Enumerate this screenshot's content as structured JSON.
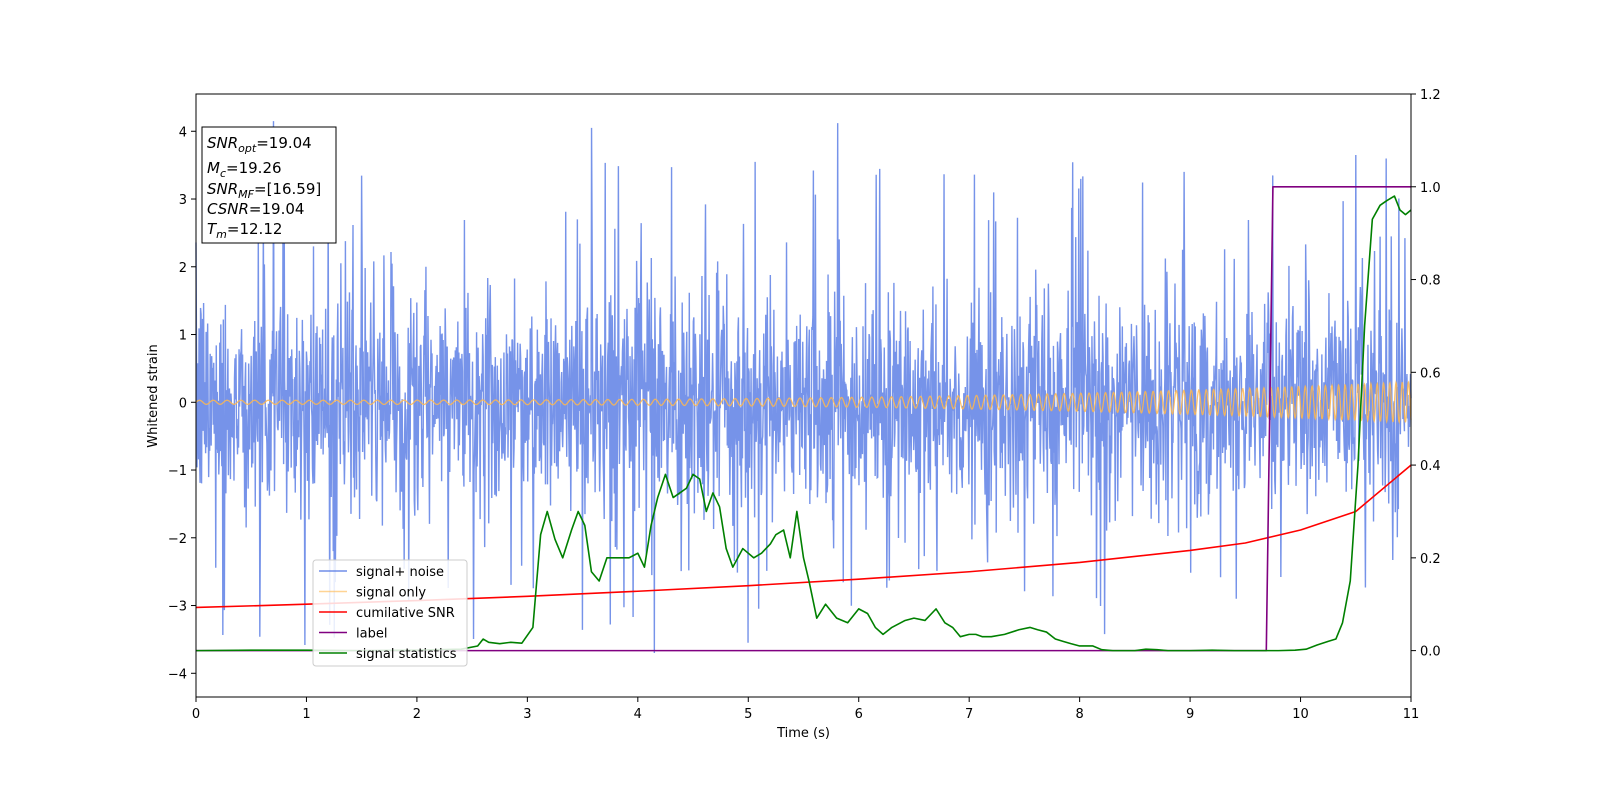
{
  "chart_data": {
    "type": "line",
    "xlabel": "Time (s)",
    "ylabel": "Whitened strain",
    "xlim": [
      0,
      11
    ],
    "ylim_left": [
      -4.35,
      4.55
    ],
    "ylim_right": [
      -0.1,
      1.2
    ],
    "x_ticks": [
      "0",
      "1",
      "2",
      "3",
      "4",
      "5",
      "6",
      "7",
      "8",
      "9",
      "10",
      "11"
    ],
    "y_ticks_left": [
      "−4",
      "−3",
      "−2",
      "−1",
      "0",
      "1",
      "2",
      "3",
      "4"
    ],
    "y_ticks_right": [
      "0.0",
      "0.2",
      "0.4",
      "0.6",
      "0.8",
      "1.0",
      "1.2"
    ],
    "legend_position": "lower-left",
    "grid": false,
    "annotation": {
      "lines": [
        {
          "base": "SNR",
          "sub": "opt",
          "value": "=19.04"
        },
        {
          "base": "M",
          "sub": "c",
          "value": "=19.26"
        },
        {
          "base": "SNR",
          "sub": "MF",
          "value": "=[16.59]"
        },
        {
          "base": "CSNR",
          "sub": "",
          "value": "=19.04"
        },
        {
          "base": "T",
          "sub": "m",
          "value": "=12.12"
        }
      ]
    },
    "series": [
      {
        "name": "signal+ noise",
        "axis": "left",
        "color": "#4169e1",
        "style": "dense noise, roughly ±2 with spikes up to about ±4.2",
        "peak_spikes": [
          [
            0.7,
            4.15
          ],
          [
            3.58,
            4.05
          ],
          [
            5.81,
            4.12
          ],
          [
            4.15,
            -3.7
          ],
          [
            5.0,
            -3.55
          ],
          [
            10.5,
            3.65
          ]
        ]
      },
      {
        "name": "signal only",
        "axis": "left",
        "color": "#ffb74d",
        "style": "chirp oscillation around 0",
        "amplitude_start": 0.03,
        "amplitude_end": 0.3
      },
      {
        "name": "cumilative SNR",
        "axis": "right",
        "color": "#ff0000",
        "x": [
          0,
          1,
          2,
          3,
          4,
          5,
          6,
          7,
          8,
          9,
          9.5,
          10,
          10.5,
          11
        ],
        "y": [
          0.093,
          0.1,
          0.108,
          0.117,
          0.128,
          0.14,
          0.154,
          0.17,
          0.19,
          0.216,
          0.232,
          0.26,
          0.3,
          0.4
        ]
      },
      {
        "name": "label",
        "axis": "right",
        "color": "#800080",
        "x": [
          0,
          9.69,
          9.75,
          11
        ],
        "y": [
          0,
          0,
          1,
          1
        ]
      },
      {
        "name": "signal statistics",
        "axis": "right",
        "color": "#008000",
        "x": [
          0,
          0.5,
          1,
          1.5,
          2,
          2.4,
          2.55,
          2.6,
          2.65,
          2.75,
          2.85,
          2.95,
          3.05,
          3.12,
          3.18,
          3.25,
          3.32,
          3.4,
          3.46,
          3.52,
          3.58,
          3.65,
          3.72,
          3.8,
          3.92,
          4.0,
          4.06,
          4.12,
          4.18,
          4.25,
          4.32,
          4.38,
          4.44,
          4.5,
          4.56,
          4.62,
          4.68,
          4.74,
          4.8,
          4.86,
          4.95,
          5.05,
          5.12,
          5.2,
          5.25,
          5.32,
          5.38,
          5.44,
          5.5,
          5.55,
          5.62,
          5.7,
          5.8,
          5.9,
          6.0,
          6.08,
          6.15,
          6.22,
          6.3,
          6.42,
          6.5,
          6.6,
          6.7,
          6.78,
          6.85,
          6.92,
          7.0,
          7.06,
          7.12,
          7.2,
          7.32,
          7.45,
          7.55,
          7.62,
          7.7,
          7.78,
          7.85,
          7.92,
          8.0,
          8.05,
          8.12,
          8.2,
          8.3,
          8.4,
          8.5,
          8.6,
          8.7,
          8.8,
          8.9,
          9.0,
          9.2,
          9.4,
          9.6,
          9.7,
          9.8,
          9.95,
          10.05,
          10.15,
          10.25,
          10.32,
          10.38,
          10.45,
          10.52,
          10.58,
          10.65,
          10.72,
          10.78,
          10.85,
          10.9,
          10.95,
          11.0
        ],
        "y": [
          0.0,
          0.001,
          0.001,
          0.0,
          0.001,
          0.003,
          0.01,
          0.025,
          0.018,
          0.015,
          0.018,
          0.016,
          0.05,
          0.25,
          0.3,
          0.24,
          0.2,
          0.26,
          0.3,
          0.27,
          0.17,
          0.15,
          0.2,
          0.2,
          0.2,
          0.21,
          0.18,
          0.27,
          0.33,
          0.38,
          0.33,
          0.34,
          0.35,
          0.38,
          0.37,
          0.3,
          0.34,
          0.31,
          0.22,
          0.18,
          0.22,
          0.2,
          0.21,
          0.23,
          0.25,
          0.26,
          0.2,
          0.3,
          0.2,
          0.15,
          0.07,
          0.1,
          0.07,
          0.06,
          0.09,
          0.08,
          0.05,
          0.035,
          0.05,
          0.065,
          0.07,
          0.065,
          0.09,
          0.06,
          0.05,
          0.03,
          0.035,
          0.035,
          0.03,
          0.03,
          0.035,
          0.045,
          0.05,
          0.045,
          0.04,
          0.025,
          0.02,
          0.015,
          0.01,
          0.01,
          0.01,
          0.002,
          0.0,
          0.0,
          0.0,
          0.003,
          0.002,
          0.0,
          0.0,
          0.0,
          0.001,
          0.0,
          0.0,
          0.0,
          0.0,
          0.001,
          0.003,
          0.012,
          0.02,
          0.025,
          0.06,
          0.15,
          0.4,
          0.7,
          0.93,
          0.96,
          0.97,
          0.98,
          0.95,
          0.94,
          0.95
        ]
      }
    ]
  }
}
